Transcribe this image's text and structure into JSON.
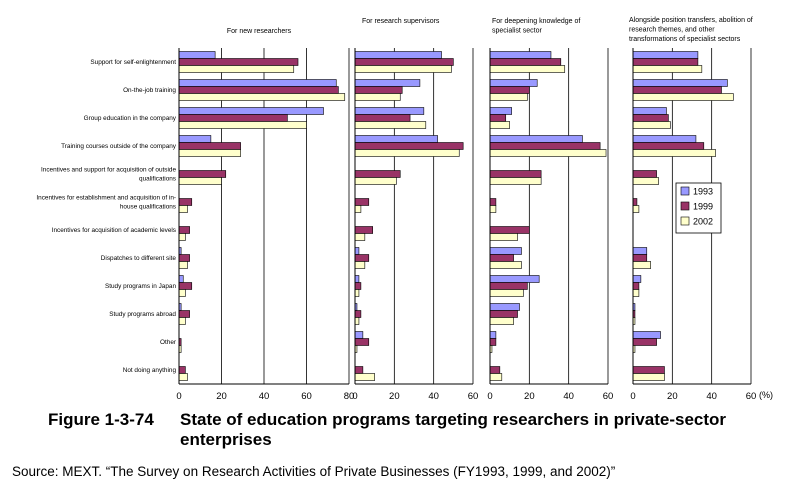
{
  "categories": [
    "Support for self-enlightenment",
    "On-the-job training",
    "Group education in the company",
    "Training courses outside of the company",
    "Incentives and support for acquisition of outside qualifications",
    "Incentives for establishment and acquisition of in-house qualifications",
    "Incentives for acquisition of academic levels",
    "Dispatches to different site",
    "Study programs in Japan",
    "Study programs abroad",
    "Other",
    "Not doing anything"
  ],
  "category_lines": [
    [
      "Support for self-enlightenment"
    ],
    [
      "On-the-job training"
    ],
    [
      "Group education in the company"
    ],
    [
      "Training courses outside of the company"
    ],
    [
      "Incentives and support for acquisition of outside",
      "qualifications"
    ],
    [
      "Incentives for establishment and acquisition of in-",
      "house qualifications"
    ],
    [
      "Incentives for acquisition of academic levels"
    ],
    [
      "Dispatches to different site"
    ],
    [
      "Study programs in Japan"
    ],
    [
      "Study programs abroad"
    ],
    [
      "Other"
    ],
    [
      "Not doing anything"
    ]
  ],
  "legend": {
    "items": [
      "1993",
      "1999",
      "2002"
    ],
    "colors": [
      "#9999ff",
      "#993366",
      "#ffffcc"
    ]
  },
  "unit": "(%)",
  "caption": {
    "number": "Figure 1-3-74",
    "title": "State of education programs targeting researchers in private-sector enterprises"
  },
  "source": "Source: MEXT. “The Survey on Research Activities of Private Businesses (FY1993, 1999, and 2002)”",
  "chart_data": [
    {
      "type": "bar",
      "orientation": "horizontal",
      "title": "For new researchers",
      "title_lines": [
        "For new researchers"
      ],
      "xlim": [
        0,
        80
      ],
      "ticks": [
        "0",
        "20",
        "40",
        "60",
        "80"
      ],
      "series": [
        {
          "name": "1993",
          "values": [
            17,
            74,
            68,
            15,
            0,
            0,
            0,
            1,
            2,
            1,
            0,
            0
          ]
        },
        {
          "name": "1999",
          "values": [
            56,
            75,
            51,
            29,
            22,
            6,
            5,
            5,
            6,
            5,
            1,
            3
          ]
        },
        {
          "name": "2002",
          "values": [
            54,
            78,
            60,
            29,
            20,
            4,
            3,
            4,
            3,
            3,
            1,
            4
          ]
        }
      ]
    },
    {
      "type": "bar",
      "orientation": "horizontal",
      "title": "For research supervisors",
      "title_lines": [
        "For research supervisors"
      ],
      "xlim": [
        0,
        60
      ],
      "ticks": [
        "0",
        "20",
        "40",
        "60"
      ],
      "series": [
        {
          "name": "1993",
          "values": [
            44,
            33,
            35,
            42,
            0,
            0,
            0,
            2,
            2,
            1,
            4,
            0
          ]
        },
        {
          "name": "1999",
          "values": [
            50,
            24,
            28,
            55,
            23,
            7,
            9,
            7,
            3,
            3,
            7,
            4
          ]
        },
        {
          "name": "2002",
          "values": [
            49,
            23,
            36,
            53,
            21,
            3,
            5,
            5,
            2,
            2,
            1,
            10
          ]
        }
      ]
    },
    {
      "type": "bar",
      "orientation": "horizontal",
      "title": "For deepening knowledge of specialist sector",
      "title_lines": [
        "For deepening knowledge of",
        "specialist sector"
      ],
      "xlim": [
        0,
        60
      ],
      "ticks": [
        "0",
        "20",
        "40",
        "60"
      ],
      "series": [
        {
          "name": "1993",
          "values": [
            31,
            24,
            11,
            47,
            0,
            0,
            0,
            16,
            25,
            15,
            3,
            0
          ]
        },
        {
          "name": "1999",
          "values": [
            36,
            20,
            8,
            56,
            26,
            3,
            20,
            12,
            19,
            14,
            3,
            5
          ]
        },
        {
          "name": "2002",
          "values": [
            38,
            19,
            10,
            59,
            26,
            3,
            14,
            16,
            17,
            12,
            1,
            6
          ]
        }
      ]
    },
    {
      "type": "bar",
      "orientation": "horizontal",
      "title": "Alongside position transfers, abolition of research themes, and other transformations of specialist sectors",
      "title_lines": [
        "Alongside position transfers, abolition of",
        "research themes, and other",
        "transformations of specialist sectors"
      ],
      "xlim": [
        0,
        60
      ],
      "ticks": [
        "0",
        "20",
        "40",
        "60"
      ],
      "series": [
        {
          "name": "1993",
          "values": [
            33,
            48,
            17,
            32,
            0,
            0,
            0,
            7,
            4,
            1,
            14,
            0
          ]
        },
        {
          "name": "1999",
          "values": [
            33,
            45,
            18,
            36,
            12,
            2,
            0,
            7,
            3,
            1,
            12,
            16
          ]
        },
        {
          "name": "2002",
          "values": [
            35,
            51,
            19,
            42,
            13,
            3,
            0,
            9,
            3,
            1,
            1,
            16
          ]
        }
      ]
    }
  ]
}
